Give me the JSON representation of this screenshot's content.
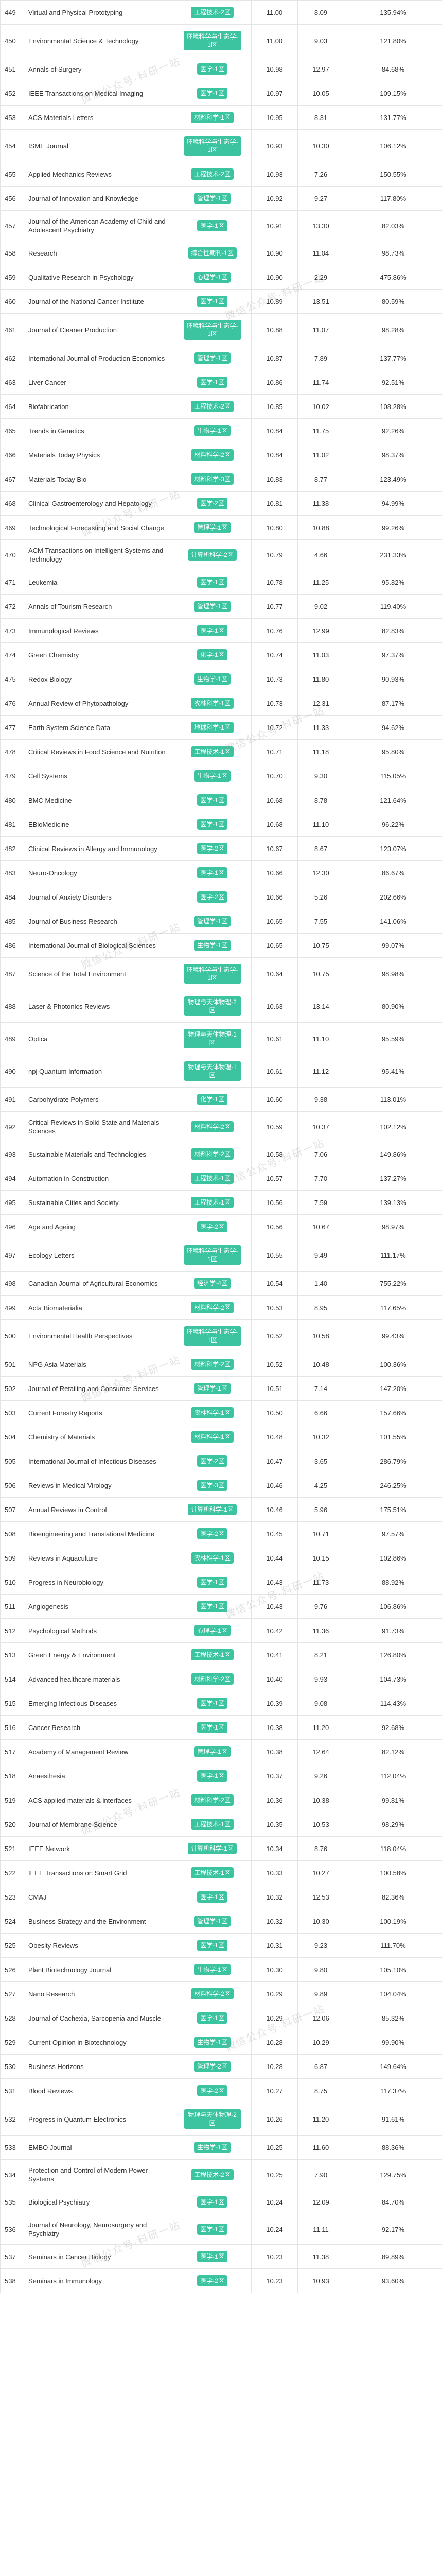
{
  "watermark": {
    "text": "微信公众号·科研一站"
  },
  "colors": {
    "badge_bg": "#3bc49f",
    "badge_text": "#ffffff",
    "grid": "#e4e4e4",
    "text": "#333333"
  },
  "table": {
    "rows": [
      {
        "rank": "449",
        "name": "Virtual and Physical Prototyping",
        "category": "工程技术-2区",
        "if_latest": "11.00",
        "if_previous": "8.09",
        "percent": "135.94%"
      },
      {
        "rank": "450",
        "name": "Environmental Science & Technology",
        "category": "环境科学与生态学-1区",
        "if_latest": "11.00",
        "if_previous": "9.03",
        "percent": "121.80%"
      },
      {
        "rank": "451",
        "name": "Annals of Surgery",
        "category": "医学-1区",
        "if_latest": "10.98",
        "if_previous": "12.97",
        "percent": "84.68%"
      },
      {
        "rank": "452",
        "name": "IEEE Transactions on Medical Imaging",
        "category": "医学-1区",
        "if_latest": "10.97",
        "if_previous": "10.05",
        "percent": "109.15%"
      },
      {
        "rank": "453",
        "name": "ACS Materials Letters",
        "category": "材料科学-1区",
        "if_latest": "10.95",
        "if_previous": "8.31",
        "percent": "131.77%"
      },
      {
        "rank": "454",
        "name": "ISME Journal",
        "category": "环境科学与生态学-1区",
        "if_latest": "10.93",
        "if_previous": "10.30",
        "percent": "106.12%"
      },
      {
        "rank": "455",
        "name": "Applied Mechanics Reviews",
        "category": "工程技术-2区",
        "if_latest": "10.93",
        "if_previous": "7.26",
        "percent": "150.55%"
      },
      {
        "rank": "456",
        "name": "Journal of Innovation and Knowledge",
        "category": "管理学-1区",
        "if_latest": "10.92",
        "if_previous": "9.27",
        "percent": "117.80%"
      },
      {
        "rank": "457",
        "name": "Journal of the American Academy of Child and Adolescent Psychiatry",
        "category": "医学-1区",
        "if_latest": "10.91",
        "if_previous": "13.30",
        "percent": "82.03%"
      },
      {
        "rank": "458",
        "name": "Research",
        "category": "综合性期刊-1区",
        "if_latest": "10.90",
        "if_previous": "11.04",
        "percent": "98.73%"
      },
      {
        "rank": "459",
        "name": "Qualitative Research in Psychology",
        "category": "心理学-1区",
        "if_latest": "10.90",
        "if_previous": "2.29",
        "percent": "475.86%"
      },
      {
        "rank": "460",
        "name": "Journal of the National Cancer Institute",
        "category": "医学-1区",
        "if_latest": "10.89",
        "if_previous": "13.51",
        "percent": "80.59%"
      },
      {
        "rank": "461",
        "name": "Journal of Cleaner Production",
        "category": "环境科学与生态学-1区",
        "if_latest": "10.88",
        "if_previous": "11.07",
        "percent": "98.28%"
      },
      {
        "rank": "462",
        "name": "International Journal of Production Economics",
        "category": "管理学-1区",
        "if_latest": "10.87",
        "if_previous": "7.89",
        "percent": "137.77%"
      },
      {
        "rank": "463",
        "name": "Liver Cancer",
        "category": "医学-1区",
        "if_latest": "10.86",
        "if_previous": "11.74",
        "percent": "92.51%"
      },
      {
        "rank": "464",
        "name": "Biofabrication",
        "category": "工程技术-2区",
        "if_latest": "10.85",
        "if_previous": "10.02",
        "percent": "108.28%"
      },
      {
        "rank": "465",
        "name": "Trends in Genetics",
        "category": "生物学-1区",
        "if_latest": "10.84",
        "if_previous": "11.75",
        "percent": "92.26%"
      },
      {
        "rank": "466",
        "name": "Materials Today Physics",
        "category": "材料科学-2区",
        "if_latest": "10.84",
        "if_previous": "11.02",
        "percent": "98.37%"
      },
      {
        "rank": "467",
        "name": "Materials Today Bio",
        "category": "材料科学-3区",
        "if_latest": "10.83",
        "if_previous": "8.77",
        "percent": "123.49%"
      },
      {
        "rank": "468",
        "name": "Clinical Gastroenterology and Hepatology",
        "category": "医学-2区",
        "if_latest": "10.81",
        "if_previous": "11.38",
        "percent": "94.99%"
      },
      {
        "rank": "469",
        "name": "Technological Forecasting and Social Change",
        "category": "管理学-1区",
        "if_latest": "10.80",
        "if_previous": "10.88",
        "percent": "99.26%"
      },
      {
        "rank": "470",
        "name": "ACM Transactions on Intelligent Systems and Technology",
        "category": "计算机科学-2区",
        "if_latest": "10.79",
        "if_previous": "4.66",
        "percent": "231.33%"
      },
      {
        "rank": "471",
        "name": "Leukemia",
        "category": "医学-1区",
        "if_latest": "10.78",
        "if_previous": "11.25",
        "percent": "95.82%"
      },
      {
        "rank": "472",
        "name": "Annals of Tourism Research",
        "category": "管理学-1区",
        "if_latest": "10.77",
        "if_previous": "9.02",
        "percent": "119.40%"
      },
      {
        "rank": "473",
        "name": "Immunological Reviews",
        "category": "医学-1区",
        "if_latest": "10.76",
        "if_previous": "12.99",
        "percent": "82.83%"
      },
      {
        "rank": "474",
        "name": "Green Chemistry",
        "category": "化学-1区",
        "if_latest": "10.74",
        "if_previous": "11.03",
        "percent": "97.37%"
      },
      {
        "rank": "475",
        "name": "Redox Biology",
        "category": "生物学-1区",
        "if_latest": "10.73",
        "if_previous": "11.80",
        "percent": "90.93%"
      },
      {
        "rank": "476",
        "name": "Annual Review of Phytopathology",
        "category": "农林科学-1区",
        "if_latest": "10.73",
        "if_previous": "12.31",
        "percent": "87.17%"
      },
      {
        "rank": "477",
        "name": "Earth System Science Data",
        "category": "地球科学-1区",
        "if_latest": "10.72",
        "if_previous": "11.33",
        "percent": "94.62%"
      },
      {
        "rank": "478",
        "name": "Critical Reviews in Food Science and Nutrition",
        "category": "工程技术-1区",
        "if_latest": "10.71",
        "if_previous": "11.18",
        "percent": "95.80%"
      },
      {
        "rank": "479",
        "name": "Cell Systems",
        "category": "生物学-1区",
        "if_latest": "10.70",
        "if_previous": "9.30",
        "percent": "115.05%"
      },
      {
        "rank": "480",
        "name": "BMC Medicine",
        "category": "医学-1区",
        "if_latest": "10.68",
        "if_previous": "8.78",
        "percent": "121.64%"
      },
      {
        "rank": "481",
        "name": "EBioMedicine",
        "category": "医学-1区",
        "if_latest": "10.68",
        "if_previous": "11.10",
        "percent": "96.22%"
      },
      {
        "rank": "482",
        "name": "Clinical Reviews in Allergy and Immunology",
        "category": "医学-2区",
        "if_latest": "10.67",
        "if_previous": "8.67",
        "percent": "123.07%"
      },
      {
        "rank": "483",
        "name": "Neuro-Oncology",
        "category": "医学-1区",
        "if_latest": "10.66",
        "if_previous": "12.30",
        "percent": "86.67%"
      },
      {
        "rank": "484",
        "name": "Journal of Anxiety Disorders",
        "category": "医学-2区",
        "if_latest": "10.66",
        "if_previous": "5.26",
        "percent": "202.66%"
      },
      {
        "rank": "485",
        "name": "Journal of Business Research",
        "category": "管理学-1区",
        "if_latest": "10.65",
        "if_previous": "7.55",
        "percent": "141.06%"
      },
      {
        "rank": "486",
        "name": "International Journal of Biological Sciences",
        "category": "生物学-1区",
        "if_latest": "10.65",
        "if_previous": "10.75",
        "percent": "99.07%"
      },
      {
        "rank": "487",
        "name": "Science of the Total Environment",
        "category": "环境科学与生态学-1区",
        "if_latest": "10.64",
        "if_previous": "10.75",
        "percent": "98.98%"
      },
      {
        "rank": "488",
        "name": "Laser & Photonics Reviews",
        "category": "物理与天体物理-2区",
        "if_latest": "10.63",
        "if_previous": "13.14",
        "percent": "80.90%"
      },
      {
        "rank": "489",
        "name": "Optica",
        "category": "物理与天体物理-1区",
        "if_latest": "10.61",
        "if_previous": "11.10",
        "percent": "95.59%"
      },
      {
        "rank": "490",
        "name": "npj Quantum Information",
        "category": "物理与天体物理-1区",
        "if_latest": "10.61",
        "if_previous": "11.12",
        "percent": "95.41%"
      },
      {
        "rank": "491",
        "name": "Carbohydrate Polymers",
        "category": "化学-1区",
        "if_latest": "10.60",
        "if_previous": "9.38",
        "percent": "113.01%"
      },
      {
        "rank": "492",
        "name": "Critical Reviews in Solid State and Materials Sciences",
        "category": "材料科学-2区",
        "if_latest": "10.59",
        "if_previous": "10.37",
        "percent": "102.12%"
      },
      {
        "rank": "493",
        "name": "Sustainable Materials and Technologies",
        "category": "材料科学-2区",
        "if_latest": "10.58",
        "if_previous": "7.06",
        "percent": "149.86%"
      },
      {
        "rank": "494",
        "name": "Automation in Construction",
        "category": "工程技术-1区",
        "if_latest": "10.57",
        "if_previous": "7.70",
        "percent": "137.27%"
      },
      {
        "rank": "495",
        "name": "Sustainable Cities and Society",
        "category": "工程技术-1区",
        "if_latest": "10.56",
        "if_previous": "7.59",
        "percent": "139.13%"
      },
      {
        "rank": "496",
        "name": "Age and Ageing",
        "category": "医学-2区",
        "if_latest": "10.56",
        "if_previous": "10.67",
        "percent": "98.97%"
      },
      {
        "rank": "497",
        "name": "Ecology Letters",
        "category": "环境科学与生态学-1区",
        "if_latest": "10.55",
        "if_previous": "9.49",
        "percent": "111.17%"
      },
      {
        "rank": "498",
        "name": "Canadian Journal of Agricultural Economics",
        "category": "经济学-4区",
        "if_latest": "10.54",
        "if_previous": "1.40",
        "percent": "755.22%"
      },
      {
        "rank": "499",
        "name": "Acta Biomaterialia",
        "category": "材料科学-2区",
        "if_latest": "10.53",
        "if_previous": "8.95",
        "percent": "117.65%"
      },
      {
        "rank": "500",
        "name": "Environmental Health Perspectives",
        "category": "环境科学与生态学-1区",
        "if_latest": "10.52",
        "if_previous": "10.58",
        "percent": "99.43%"
      },
      {
        "rank": "501",
        "name": "NPG Asia Materials",
        "category": "材料科学-2区",
        "if_latest": "10.52",
        "if_previous": "10.48",
        "percent": "100.36%"
      },
      {
        "rank": "502",
        "name": "Journal of Retailing and Consumer Services",
        "category": "管理学-1区",
        "if_latest": "10.51",
        "if_previous": "7.14",
        "percent": "147.20%"
      },
      {
        "rank": "503",
        "name": "Current Forestry Reports",
        "category": "农林科学-1区",
        "if_latest": "10.50",
        "if_previous": "6.66",
        "percent": "157.66%"
      },
      {
        "rank": "504",
        "name": "Chemistry of Materials",
        "category": "材料科学-1区",
        "if_latest": "10.48",
        "if_previous": "10.32",
        "percent": "101.55%"
      },
      {
        "rank": "505",
        "name": "International Journal of Infectious Diseases",
        "category": "医学-2区",
        "if_latest": "10.47",
        "if_previous": "3.65",
        "percent": "286.79%"
      },
      {
        "rank": "506",
        "name": "Reviews in Medical Virology",
        "category": "医学-3区",
        "if_latest": "10.46",
        "if_previous": "4.25",
        "percent": "246.25%"
      },
      {
        "rank": "507",
        "name": "Annual Reviews in Control",
        "category": "计算机科学-1区",
        "if_latest": "10.46",
        "if_previous": "5.96",
        "percent": "175.51%"
      },
      {
        "rank": "508",
        "name": "Bioengineering and Translational Medicine",
        "category": "医学-2区",
        "if_latest": "10.45",
        "if_previous": "10.71",
        "percent": "97.57%"
      },
      {
        "rank": "509",
        "name": "Reviews in Aquaculture",
        "category": "农林科学-1区",
        "if_latest": "10.44",
        "if_previous": "10.15",
        "percent": "102.86%"
      },
      {
        "rank": "510",
        "name": "Progress in Neurobiology",
        "category": "医学-1区",
        "if_latest": "10.43",
        "if_previous": "11.73",
        "percent": "88.92%"
      },
      {
        "rank": "511",
        "name": "Angiogenesis",
        "category": "医学-1区",
        "if_latest": "10.43",
        "if_previous": "9.76",
        "percent": "106.86%"
      },
      {
        "rank": "512",
        "name": "Psychological Methods",
        "category": "心理学-1区",
        "if_latest": "10.42",
        "if_previous": "11.36",
        "percent": "91.73%"
      },
      {
        "rank": "513",
        "name": "Green Energy & Environment",
        "category": "工程技术-1区",
        "if_latest": "10.41",
        "if_previous": "8.21",
        "percent": "126.80%"
      },
      {
        "rank": "514",
        "name": "Advanced healthcare materials",
        "category": "材料科学-2区",
        "if_latest": "10.40",
        "if_previous": "9.93",
        "percent": "104.73%"
      },
      {
        "rank": "515",
        "name": "Emerging Infectious Diseases",
        "category": "医学-1区",
        "if_latest": "10.39",
        "if_previous": "9.08",
        "percent": "114.43%"
      },
      {
        "rank": "516",
        "name": "Cancer Research",
        "category": "医学-1区",
        "if_latest": "10.38",
        "if_previous": "11.20",
        "percent": "92.68%"
      },
      {
        "rank": "517",
        "name": "Academy of Management Review",
        "category": "管理学-1区",
        "if_latest": "10.38",
        "if_previous": "12.64",
        "percent": "82.12%"
      },
      {
        "rank": "518",
        "name": "Anaesthesia",
        "category": "医学-1区",
        "if_latest": "10.37",
        "if_previous": "9.26",
        "percent": "112.04%"
      },
      {
        "rank": "519",
        "name": "ACS applied materials & interfaces",
        "category": "材料科学-2区",
        "if_latest": "10.36",
        "if_previous": "10.38",
        "percent": "99.81%"
      },
      {
        "rank": "520",
        "name": "Journal of Membrane Science",
        "category": "工程技术-1区",
        "if_latest": "10.35",
        "if_previous": "10.53",
        "percent": "98.29%"
      },
      {
        "rank": "521",
        "name": "IEEE Network",
        "category": "计算机科学-1区",
        "if_latest": "10.34",
        "if_previous": "8.76",
        "percent": "118.04%"
      },
      {
        "rank": "522",
        "name": "IEEE Transactions on Smart Grid",
        "category": "工程技术-1区",
        "if_latest": "10.33",
        "if_previous": "10.27",
        "percent": "100.58%"
      },
      {
        "rank": "523",
        "name": "CMAJ",
        "category": "医学-1区",
        "if_latest": "10.32",
        "if_previous": "12.53",
        "percent": "82.36%"
      },
      {
        "rank": "524",
        "name": "Business Strategy and the Environment",
        "category": "管理学-1区",
        "if_latest": "10.32",
        "if_previous": "10.30",
        "percent": "100.19%"
      },
      {
        "rank": "525",
        "name": "Obesity Reviews",
        "category": "医学-1区",
        "if_latest": "10.31",
        "if_previous": "9.23",
        "percent": "111.70%"
      },
      {
        "rank": "526",
        "name": "Plant Biotechnology Journal",
        "category": "生物学-1区",
        "if_latest": "10.30",
        "if_previous": "9.80",
        "percent": "105.10%"
      },
      {
        "rank": "527",
        "name": "Nano Research",
        "category": "材料科学-2区",
        "if_latest": "10.29",
        "if_previous": "9.89",
        "percent": "104.04%"
      },
      {
        "rank": "528",
        "name": "Journal of Cachexia, Sarcopenia and Muscle",
        "category": "医学-1区",
        "if_latest": "10.29",
        "if_previous": "12.06",
        "percent": "85.32%"
      },
      {
        "rank": "529",
        "name": "Current Opinion in Biotechnology",
        "category": "生物学-1区",
        "if_latest": "10.28",
        "if_previous": "10.29",
        "percent": "99.90%"
      },
      {
        "rank": "530",
        "name": "Business Horizons",
        "category": "管理学-2区",
        "if_latest": "10.28",
        "if_previous": "6.87",
        "percent": "149.64%"
      },
      {
        "rank": "531",
        "name": "Blood Reviews",
        "category": "医学-2区",
        "if_latest": "10.27",
        "if_previous": "8.75",
        "percent": "117.37%"
      },
      {
        "rank": "532",
        "name": "Progress in Quantum Electronics",
        "category": "物理与天体物理-2区",
        "if_latest": "10.26",
        "if_previous": "11.20",
        "percent": "91.61%"
      },
      {
        "rank": "533",
        "name": "EMBO Journal",
        "category": "生物学-1区",
        "if_latest": "10.25",
        "if_previous": "11.60",
        "percent": "88.36%"
      },
      {
        "rank": "534",
        "name": "Protection and Control of Modern Power Systems",
        "category": "工程技术-2区",
        "if_latest": "10.25",
        "if_previous": "7.90",
        "percent": "129.75%"
      },
      {
        "rank": "535",
        "name": "Biological Psychiatry",
        "category": "医学-1区",
        "if_latest": "10.24",
        "if_previous": "12.09",
        "percent": "84.70%"
      },
      {
        "rank": "536",
        "name": "Journal of Neurology, Neurosurgery and Psychiatry",
        "category": "医学-1区",
        "if_latest": "10.24",
        "if_previous": "11.11",
        "percent": "92.17%"
      },
      {
        "rank": "537",
        "name": "Seminars in Cancer Biology",
        "category": "医学-1区",
        "if_latest": "10.23",
        "if_previous": "11.38",
        "percent": "89.89%"
      },
      {
        "rank": "538",
        "name": "Seminars in Immunology",
        "category": "医学-2区",
        "if_latest": "10.23",
        "if_previous": "10.93",
        "percent": "93.60%"
      }
    ]
  }
}
